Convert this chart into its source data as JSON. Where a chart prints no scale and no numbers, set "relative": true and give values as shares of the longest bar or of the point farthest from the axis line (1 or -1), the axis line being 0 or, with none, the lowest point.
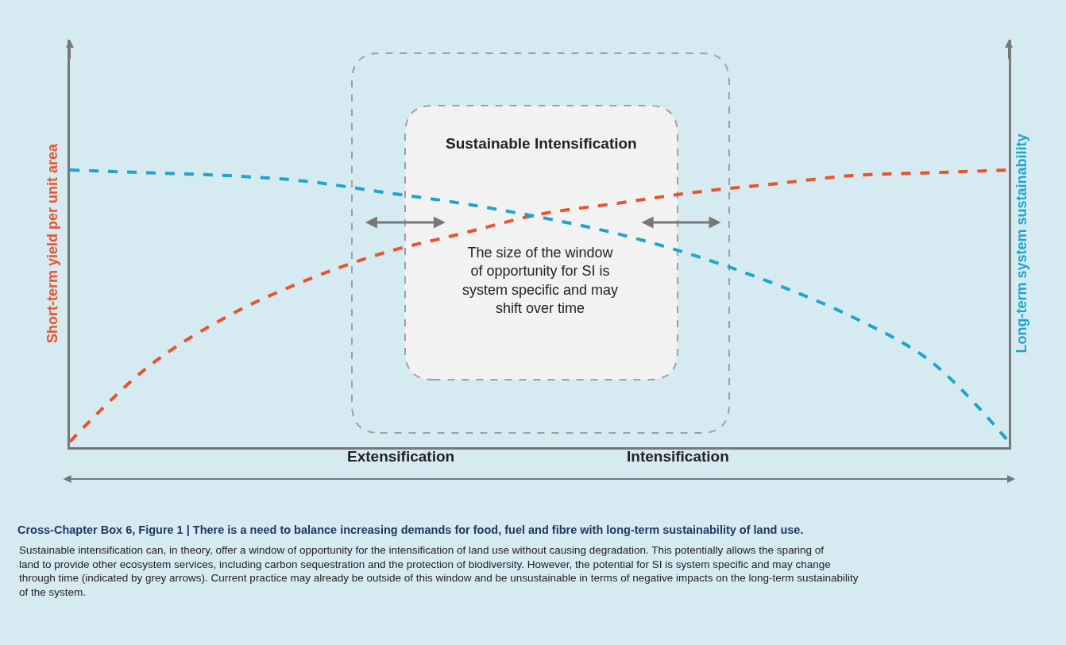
{
  "chart_data": {
    "type": "line",
    "relative": true,
    "title": "Cross-Chapter Box 6, Figure 1 | There is a need to balance increasing demands for food, fuel and fibre with long-term sustainability of land use.",
    "ylabel": "Short-term yield per unit area",
    "y2label": "Long-term system sustainability",
    "categories": [
      null,
      null,
      null,
      null,
      null,
      null,
      null,
      null,
      null,
      null,
      null,
      null,
      null
    ],
    "series": [
      {
        "color": "#e8532b",
        "values": [
          0.02,
          0.29,
          0.47,
          0.6,
          0.7,
          0.77,
          0.84,
          0.88,
          0.92,
          0.95,
          0.98,
          0.99,
          1.0
        ]
      },
      {
        "color": "#1ba6cf",
        "values": [
          1.0,
          0.99,
          0.98,
          0.96,
          0.92,
          0.88,
          0.83,
          0.77,
          0.69,
          0.59,
          0.47,
          0.31,
          0.02
        ]
      }
    ],
    "annotations": [
      "Extensification",
      "Intensification",
      "Sustainable Intensification",
      "The size of the window of opportunity for SI is system specific and may shift over time",
      "Sustainable intensification can, in theory, offer a window of opportunity for the intensification of land use without causing degradation. This potentially allows the sparing of land to provide other ecosystem services, including carbon sequestration and the protection of biodiversity. However, the potential for SI is system specific and may change through time (indicated by grey arrows). Current practice may already be outside of this window and be unsustainable in terms of negative impacts on the long-term sustainability of the system."
    ],
    "line_style": "dashed",
    "marker": "none",
    "grid": false
  }
}
